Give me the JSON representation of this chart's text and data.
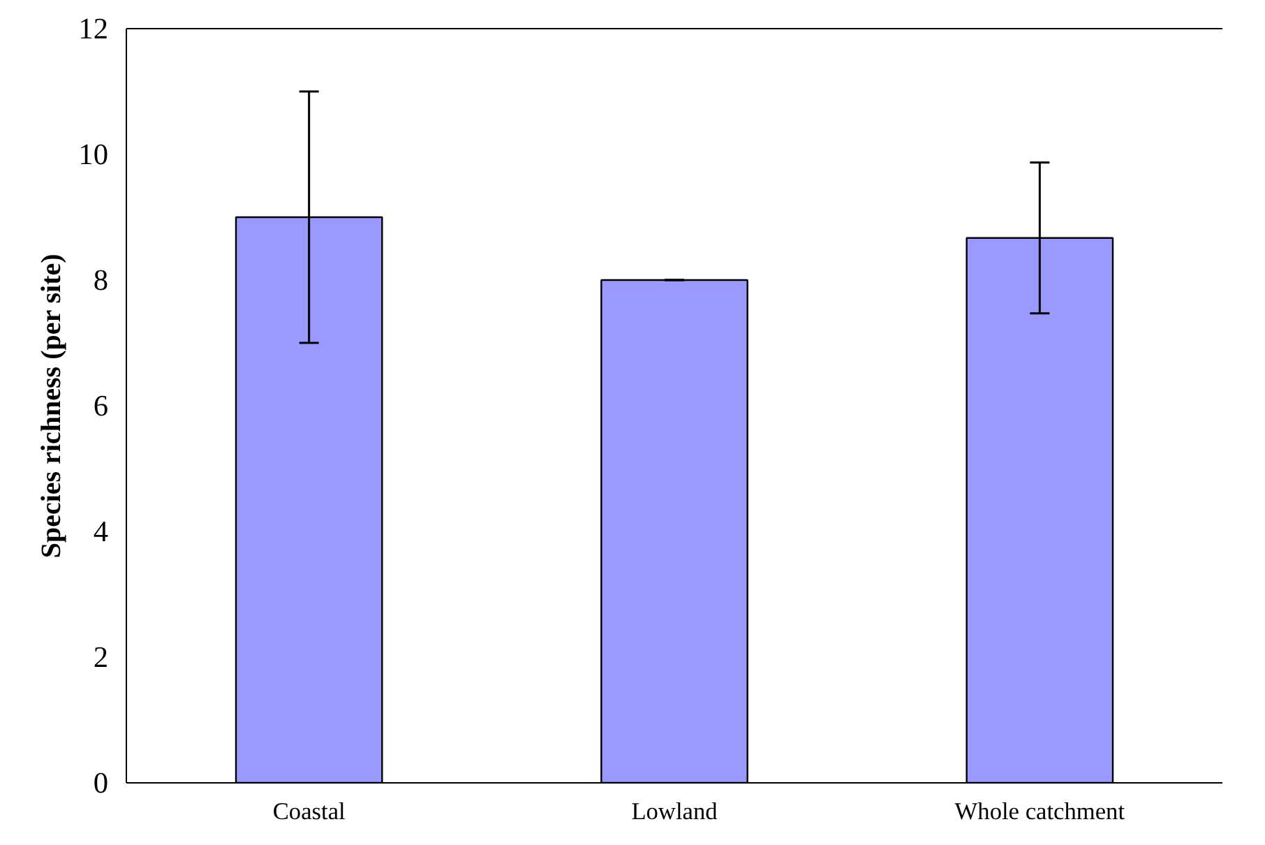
{
  "chart_data": {
    "type": "bar",
    "ylabel": "Species richness (per site)",
    "categories": [
      "Coastal",
      "Lowland",
      "Whole catchment"
    ],
    "values": [
      9,
      8,
      8.67
    ],
    "errors": [
      2,
      0,
      1.2
    ],
    "color": "#9999ff",
    "ylim": [
      0,
      12
    ],
    "yticks": [
      0,
      2,
      4,
      6,
      8,
      10,
      12
    ],
    "grid": false
  }
}
